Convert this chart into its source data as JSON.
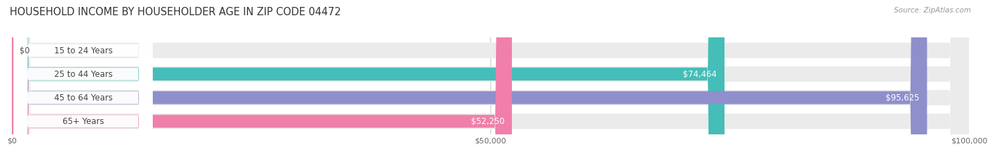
{
  "title": "HOUSEHOLD INCOME BY HOUSEHOLDER AGE IN ZIP CODE 04472",
  "source": "Source: ZipAtlas.com",
  "categories": [
    "15 to 24 Years",
    "25 to 44 Years",
    "45 to 64 Years",
    "65+ Years"
  ],
  "values": [
    0,
    74464,
    95625,
    52250
  ],
  "labels": [
    "$0",
    "$74,464",
    "$95,625",
    "$52,250"
  ],
  "bar_colors": [
    "#c9a8d4",
    "#45bdb8",
    "#8f8fcc",
    "#f07faa"
  ],
  "track_color": "#ebebeb",
  "xlim": [
    0,
    100000
  ],
  "xticks": [
    0,
    50000,
    100000
  ],
  "xticklabels": [
    "$0",
    "$50,000",
    "$100,000"
  ],
  "title_fontsize": 10.5,
  "source_fontsize": 7.5,
  "bar_label_fontsize": 8.5,
  "cat_label_fontsize": 8.5,
  "background_color": "#ffffff",
  "label_inside_color": "#ffffff",
  "label_outside_color": "#555555",
  "grid_color": "#cccccc",
  "cat_text_color": "#444444",
  "title_color": "#333333",
  "source_color": "#999999"
}
